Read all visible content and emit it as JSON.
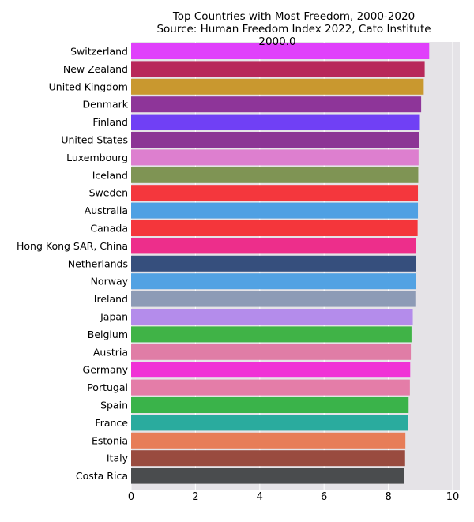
{
  "chart_data": {
    "type": "bar",
    "orientation": "horizontal",
    "title": "Top Countries with Most Freedom, 2000-2020",
    "subtitle": "Source: Human Freedom Index 2022, Cato Institute",
    "annotation": "2000.0",
    "xlabel": "",
    "ylabel": "",
    "xlim": [
      0,
      10
    ],
    "xticks": [
      "0",
      "2",
      "4",
      "6",
      "8",
      "10"
    ],
    "grid": true,
    "categories": [
      "Switzerland",
      "New Zealand",
      "United Kingdom",
      "Denmark",
      "Finland",
      "United States",
      "Luxembourg",
      "Iceland",
      "Sweden",
      "Australia",
      "Canada",
      "Hong Kong SAR, China",
      "Netherlands",
      "Norway",
      "Ireland",
      "Japan",
      "Belgium",
      "Austria",
      "Germany",
      "Portugal",
      "Spain",
      "France",
      "Estonia",
      "Italy",
      "Costa Rica"
    ],
    "values": [
      9.27,
      9.13,
      9.1,
      9.02,
      8.98,
      8.95,
      8.94,
      8.93,
      8.92,
      8.92,
      8.91,
      8.86,
      8.86,
      8.86,
      8.84,
      8.76,
      8.72,
      8.7,
      8.68,
      8.67,
      8.63,
      8.6,
      8.53,
      8.52,
      8.48
    ],
    "colors": [
      "#e040fb",
      "#b8285a",
      "#c9982f",
      "#8e3599",
      "#7040f5",
      "#8c3595",
      "#dd7fcf",
      "#7f9454",
      "#f4373d",
      "#4fa0e3",
      "#f4363b",
      "#ed2e8b",
      "#364f7d",
      "#52a2e3",
      "#8d9bb6",
      "#b48ceb",
      "#40b347",
      "#e07da6",
      "#f032d6",
      "#e47da8",
      "#3ab34a",
      "#2aab9e",
      "#e77d58",
      "#994b3f",
      "#4a4c4e"
    ]
  }
}
